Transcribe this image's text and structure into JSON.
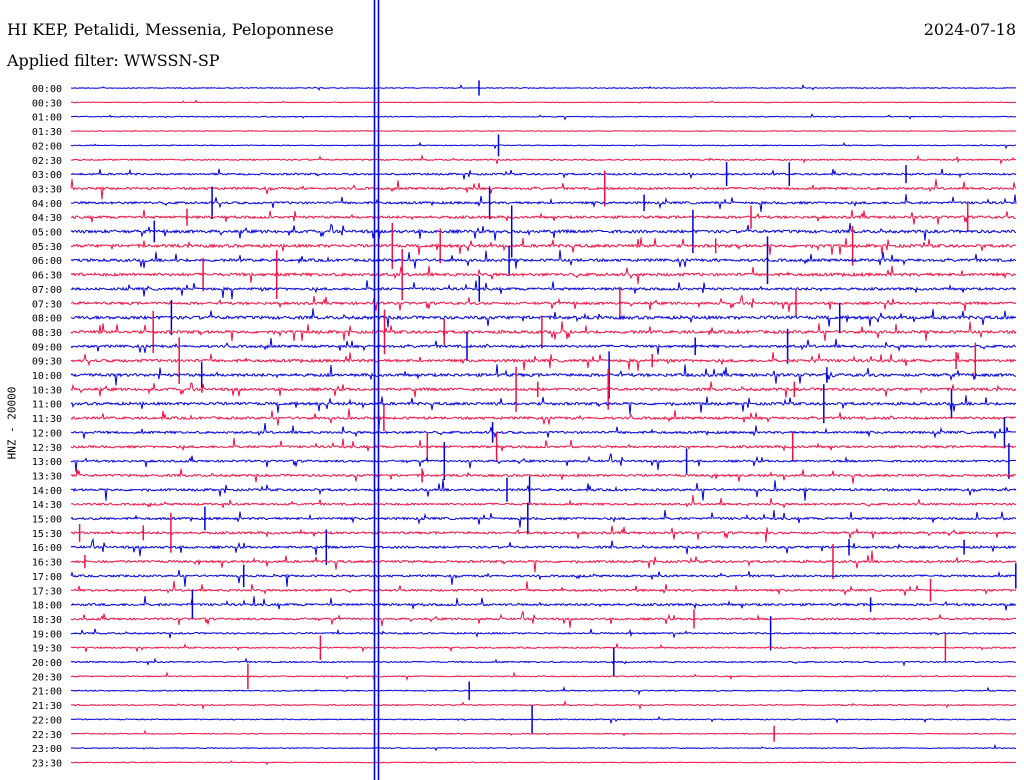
{
  "header": {
    "station": "HI KEP, Petalidi, Messenia, Peloponnese",
    "date": "2024-07-18",
    "filter": "Applied filter: WWSSN-SP"
  },
  "chart_data": {
    "type": "line",
    "title": "HI KEP, Petalidi, Messenia, Peloponnese",
    "subtitle": "Applied filter: WWSSN-SP",
    "ylabel": "HNZ - 20000",
    "xlabel": "",
    "grid": false,
    "colors": {
      "even_row": "#0000dd",
      "odd_row": "#ee1144",
      "marker": "#0000dd"
    },
    "row_labels": [
      "00:00",
      "00:30",
      "01:00",
      "01:30",
      "02:00",
      "02:30",
      "03:00",
      "03:30",
      "04:00",
      "04:30",
      "05:00",
      "05:30",
      "06:00",
      "06:30",
      "07:00",
      "07:30",
      "08:00",
      "08:30",
      "09:00",
      "09:30",
      "10:00",
      "10:30",
      "11:00",
      "11:30",
      "12:00",
      "12:30",
      "13:00",
      "13:30",
      "14:00",
      "14:30",
      "15:00",
      "15:30",
      "16:00",
      "16:30",
      "17:00",
      "17:30",
      "18:00",
      "18:30",
      "19:00",
      "19:30",
      "20:00",
      "20:30",
      "21:00",
      "21:30",
      "22:00",
      "22:30",
      "23:00",
      "23:30"
    ],
    "row_activity": [
      0.4,
      0.3,
      0.4,
      0.3,
      0.4,
      0.6,
      0.8,
      1.0,
      1.0,
      1.1,
      1.3,
      1.3,
      1.2,
      1.3,
      1.1,
      1.1,
      1.4,
      1.3,
      1.1,
      1.2,
      1.3,
      1.2,
      1.2,
      1.1,
      1.0,
      1.0,
      0.9,
      1.0,
      1.0,
      0.9,
      1.0,
      1.0,
      1.0,
      1.0,
      0.9,
      0.9,
      1.0,
      0.9,
      0.7,
      0.6,
      0.6,
      0.5,
      0.5,
      0.5,
      0.5,
      0.4,
      0.4,
      0.4
    ],
    "minute_marker_minute": 9.7,
    "row_minutes": 30
  }
}
